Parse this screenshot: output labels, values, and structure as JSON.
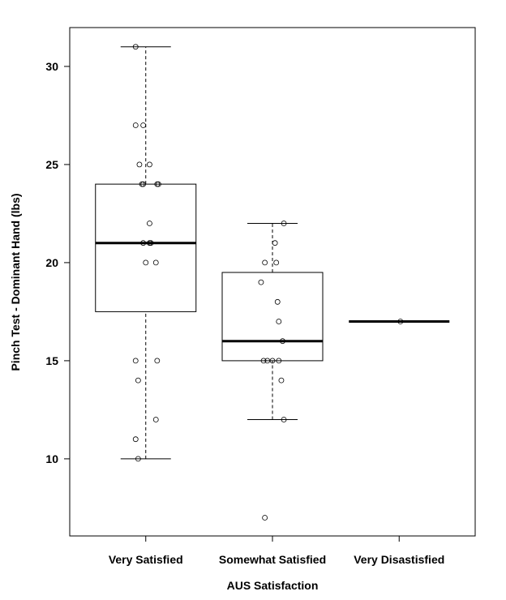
{
  "chart_data": {
    "type": "boxplot",
    "title": "",
    "xlabel": "AUS Satisfaction",
    "ylabel": "Pinch Test - Dominant Hand (lbs)",
    "categories": [
      "Very Satisfied",
      "Somewhat Satisfied",
      "Very Disastisfied"
    ],
    "ylim": [
      6.07,
      31.98
    ],
    "xlim": [
      0.4,
      3.6
    ],
    "yticks": [
      10,
      15,
      20,
      25,
      30
    ],
    "grid": false,
    "boxes": [
      {
        "whisker_low": 10,
        "q1": 17.5,
        "median": 21,
        "q3": 24,
        "whisker_high": 31,
        "outliers": []
      },
      {
        "whisker_low": 12,
        "q1": 15,
        "median": 16,
        "q3": 19.5,
        "whisker_high": 22,
        "outliers": [
          7
        ]
      },
      {
        "whisker_low": 17,
        "q1": 17,
        "median": 17,
        "q3": 17,
        "whisker_high": 17,
        "outliers": []
      }
    ],
    "points": [
      {
        "group": 1,
        "values": [
          31,
          27,
          27,
          25,
          25,
          24,
          24,
          24,
          24,
          22,
          21,
          21,
          21,
          20,
          20,
          15,
          15,
          14,
          12,
          11,
          10
        ],
        "jitter": [
          -0.08,
          -0.08,
          -0.02,
          -0.05,
          0.03,
          -0.03,
          -0.02,
          0.09,
          0.1,
          0.03,
          -0.02,
          0.03,
          0.04,
          0,
          0.08,
          -0.08,
          0.09,
          -0.06,
          0.08,
          -0.08,
          -0.06
        ]
      },
      {
        "group": 2,
        "values": [
          22,
          21,
          20,
          20,
          19,
          18,
          17,
          16,
          15,
          15,
          15,
          15,
          14,
          12,
          7
        ],
        "jitter": [
          0.09,
          0.02,
          -0.06,
          0.03,
          -0.09,
          0.04,
          0.05,
          0.08,
          -0.07,
          -0.04,
          0,
          0.05,
          0.07,
          0.09,
          -0.06
        ]
      },
      {
        "group": 3,
        "values": [
          17
        ],
        "jitter": [
          0.01
        ]
      }
    ]
  }
}
